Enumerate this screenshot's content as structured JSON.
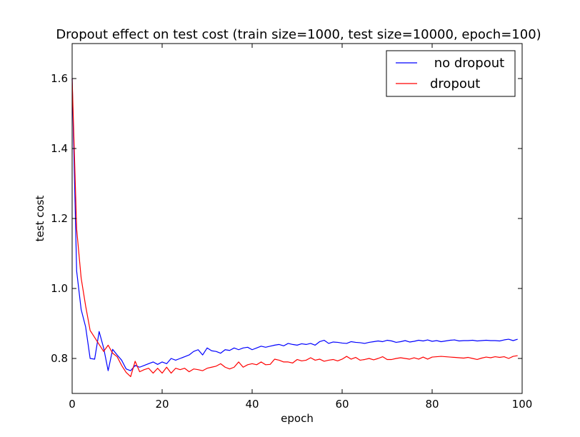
{
  "chart_data": {
    "type": "line",
    "title": "Dropout effect on test cost (train size=1000, test size=10000, epoch=100)",
    "xlabel": "epoch",
    "ylabel": "test cost",
    "xlim": [
      0,
      100
    ],
    "ylim": [
      0.7,
      1.7
    ],
    "xticks": [
      0,
      20,
      40,
      60,
      80,
      100
    ],
    "yticks": [
      0.8,
      1.0,
      1.2,
      1.4,
      1.6
    ],
    "grid": false,
    "legend_position": "top-right",
    "series": [
      {
        "name": " no dropout",
        "color": "#0000ff",
        "values": [
          1.6,
          1.05,
          0.94,
          0.89,
          0.8,
          0.798,
          0.877,
          0.83,
          0.765,
          0.826,
          0.81,
          0.795,
          0.77,
          0.765,
          0.78,
          0.775,
          0.78,
          0.785,
          0.79,
          0.783,
          0.79,
          0.785,
          0.8,
          0.795,
          0.8,
          0.805,
          0.81,
          0.82,
          0.825,
          0.81,
          0.83,
          0.822,
          0.82,
          0.815,
          0.825,
          0.823,
          0.83,
          0.825,
          0.83,
          0.832,
          0.825,
          0.83,
          0.835,
          0.832,
          0.835,
          0.838,
          0.84,
          0.836,
          0.843,
          0.84,
          0.838,
          0.842,
          0.84,
          0.843,
          0.838,
          0.848,
          0.852,
          0.843,
          0.847,
          0.846,
          0.844,
          0.843,
          0.848,
          0.846,
          0.845,
          0.843,
          0.846,
          0.848,
          0.85,
          0.848,
          0.852,
          0.85,
          0.846,
          0.848,
          0.851,
          0.847,
          0.849,
          0.852,
          0.85,
          0.853,
          0.849,
          0.851,
          0.848,
          0.85,
          0.852,
          0.853,
          0.85,
          0.851,
          0.851,
          0.852,
          0.85,
          0.851,
          0.852,
          0.851,
          0.851,
          0.85,
          0.853,
          0.855,
          0.851,
          0.855
        ]
      },
      {
        "name": "dropout",
        "color": "#ff0000",
        "values": [
          1.6,
          1.17,
          1.03,
          0.95,
          0.88,
          0.86,
          0.84,
          0.82,
          0.838,
          0.815,
          0.805,
          0.78,
          0.76,
          0.748,
          0.792,
          0.762,
          0.768,
          0.772,
          0.758,
          0.772,
          0.758,
          0.775,
          0.758,
          0.772,
          0.768,
          0.772,
          0.762,
          0.77,
          0.768,
          0.765,
          0.772,
          0.775,
          0.778,
          0.785,
          0.775,
          0.77,
          0.775,
          0.79,
          0.775,
          0.782,
          0.785,
          0.782,
          0.79,
          0.782,
          0.783,
          0.798,
          0.795,
          0.79,
          0.79,
          0.787,
          0.797,
          0.793,
          0.795,
          0.802,
          0.795,
          0.798,
          0.792,
          0.795,
          0.797,
          0.793,
          0.798,
          0.806,
          0.798,
          0.803,
          0.795,
          0.797,
          0.8,
          0.796,
          0.8,
          0.805,
          0.797,
          0.797,
          0.8,
          0.802,
          0.8,
          0.798,
          0.802,
          0.798,
          0.804,
          0.798,
          0.804,
          0.805,
          0.806,
          0.805,
          0.804,
          0.803,
          0.802,
          0.801,
          0.803,
          0.8,
          0.797,
          0.801,
          0.804,
          0.802,
          0.805,
          0.803,
          0.805,
          0.8,
          0.806,
          0.808
        ]
      }
    ]
  }
}
